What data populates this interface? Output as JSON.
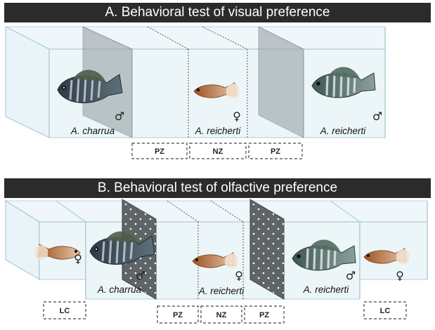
{
  "panel_a": {
    "title": "A. Behavioral test of visual preference",
    "stimulus_left": {
      "label": "A. charrua",
      "sex": "♂"
    },
    "focal": {
      "label": "A. reicherti",
      "sex": "♀"
    },
    "stimulus_right": {
      "label": "A. reicherti",
      "sex": "♂"
    },
    "zones": [
      "PZ",
      "NZ",
      "PZ"
    ]
  },
  "panel_b": {
    "title": "B. Behavioral test of olfactive preference",
    "left_control": {
      "sex": "♀"
    },
    "stimulus_left": {
      "label": "A. charrua",
      "sex": "♂"
    },
    "focal": {
      "label": "A. reicherti",
      "sex": "♀"
    },
    "stimulus_right": {
      "label": "A. reicherti",
      "sex": "♂"
    },
    "right_control": {
      "sex": "♀"
    },
    "zones": [
      "PZ",
      "NZ",
      "PZ"
    ],
    "controls": [
      "LC",
      "LC"
    ]
  },
  "colors": {
    "tank_fill": "#e6f3f8",
    "tank_edge": "#a9c6d2",
    "banner": "#2b2b2b",
    "divider_gray": "#8f9a9d",
    "perforated_panel": "#5f6466",
    "male_charrua": "#3b4a58",
    "male_reicherti": "#4c6a66",
    "female": "#b46a3c"
  }
}
